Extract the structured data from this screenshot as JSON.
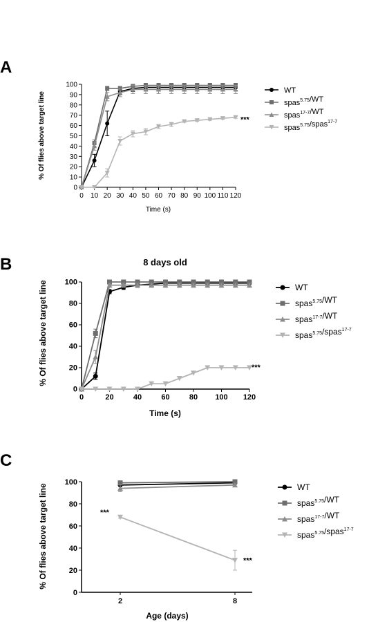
{
  "panels": [
    "A",
    "B",
    "C"
  ],
  "chart_data": [
    {
      "type": "line",
      "panel": "A",
      "title": "",
      "xlabel": "Time (s)",
      "ylabel": "% Of flies above target line",
      "xlim": [
        0,
        120
      ],
      "ylim": [
        0,
        100
      ],
      "xticks": [
        0,
        10,
        20,
        30,
        40,
        50,
        60,
        70,
        80,
        90,
        100,
        110,
        120
      ],
      "yticks": [
        0,
        10,
        20,
        30,
        40,
        50,
        60,
        70,
        80,
        90,
        100
      ],
      "x": [
        0,
        10,
        20,
        30,
        40,
        50,
        60,
        70,
        80,
        90,
        100,
        110,
        120
      ],
      "series": [
        {
          "name": "WT",
          "base": "WT",
          "sup": "",
          "tail": "",
          "marker": "circle",
          "color": "#000000",
          "values": [
            0,
            26,
            62,
            93,
            96,
            97,
            97,
            97,
            97,
            97,
            97,
            97,
            97
          ],
          "errors": [
            0,
            6,
            12,
            3,
            3,
            3,
            3,
            3,
            3,
            3,
            3,
            3,
            3
          ]
        },
        {
          "name": "spas5.75/WT",
          "base": "spas",
          "sup": "5.75",
          "tail": "/WT",
          "marker": "square",
          "color": "#6e6e6e",
          "values": [
            0,
            43,
            96,
            96,
            98,
            99,
            99,
            99,
            99,
            99,
            99,
            99,
            99
          ],
          "errors": [
            0,
            3,
            2,
            2,
            2,
            2,
            2,
            2,
            2,
            2,
            2,
            2,
            2
          ]
        },
        {
          "name": "spas17-7/WT",
          "base": "spas",
          "sup": "17-7",
          "tail": "/WT",
          "marker": "triangle-up",
          "color": "#8c8c8c",
          "values": [
            0,
            40,
            88,
            92,
            95,
            95,
            95,
            95,
            95,
            95,
            95,
            95,
            95
          ],
          "errors": [
            0,
            4,
            4,
            4,
            4,
            4,
            4,
            4,
            4,
            4,
            4,
            4,
            4
          ]
        },
        {
          "name": "spas5.75/spas17-7",
          "base": "spas",
          "sup": "5.75",
          "tail": "/spas",
          "sup2": "17-7",
          "marker": "triangle-down",
          "color": "#b4b4b4",
          "values": [
            0,
            0,
            14,
            45,
            52,
            54,
            59,
            61,
            64,
            65,
            66,
            67,
            68
          ],
          "errors": [
            0,
            0,
            4,
            4,
            3,
            3,
            2,
            2,
            1,
            1,
            1,
            1,
            1
          ]
        }
      ],
      "annotations": [
        {
          "text": "***",
          "at": "end of spas5.75/spas17-7"
        }
      ],
      "legend": "right"
    },
    {
      "type": "line",
      "panel": "B",
      "title": "8 days old",
      "xlabel": "Time (s)",
      "ylabel": "% Of flies above target line",
      "xlim": [
        0,
        120
      ],
      "ylim": [
        0,
        100
      ],
      "xticks": [
        0,
        20,
        40,
        60,
        80,
        100,
        120
      ],
      "yticks": [
        0,
        20,
        40,
        60,
        80,
        100
      ],
      "x": [
        0,
        10,
        20,
        30,
        40,
        50,
        60,
        70,
        80,
        90,
        100,
        110,
        120
      ],
      "series": [
        {
          "name": "WT",
          "base": "WT",
          "sup": "",
          "tail": "",
          "marker": "circle",
          "color": "#000000",
          "values": [
            0,
            12,
            91,
            95,
            97,
            98,
            99,
            99,
            99,
            99,
            99,
            99,
            99
          ],
          "errors": [
            0,
            3,
            2,
            2,
            2,
            2,
            1,
            1,
            1,
            1,
            1,
            1,
            1
          ]
        },
        {
          "name": "spas5.75/WT",
          "base": "spas",
          "sup": "5.75",
          "tail": "/WT",
          "marker": "square",
          "color": "#6e6e6e",
          "values": [
            0,
            52,
            100,
            100,
            100,
            100,
            100,
            100,
            100,
            100,
            100,
            100,
            100
          ],
          "errors": [
            0,
            4,
            0,
            0,
            0,
            0,
            0,
            0,
            0,
            0,
            0,
            0,
            0
          ]
        },
        {
          "name": "spas17-7/WT",
          "base": "spas",
          "sup": "17-7",
          "tail": "/WT",
          "marker": "triangle-up",
          "color": "#8c8c8c",
          "values": [
            0,
            30,
            97,
            97,
            97,
            97,
            97,
            97,
            97,
            97,
            97,
            97,
            97
          ],
          "errors": [
            0,
            6,
            2,
            2,
            2,
            2,
            2,
            2,
            2,
            2,
            2,
            2,
            2
          ]
        },
        {
          "name": "spas5.75/spas17-7",
          "base": "spas",
          "sup": "5.75",
          "tail": "/spas",
          "sup2": "17-7",
          "marker": "triangle-down",
          "color": "#b4b4b4",
          "values": [
            0,
            0,
            0,
            0,
            0,
            5,
            5,
            10,
            15,
            20,
            20,
            20,
            20
          ],
          "errors": [
            0,
            0,
            0,
            0,
            0,
            0,
            0,
            0,
            0,
            0,
            0,
            0,
            0
          ]
        }
      ],
      "annotations": [
        {
          "text": "***",
          "at": "end of spas5.75/spas17-7"
        }
      ],
      "legend": "right"
    },
    {
      "type": "line",
      "panel": "C",
      "title": "",
      "xlabel": "Age (days)",
      "ylabel": "% Of flies above target line",
      "categories": [
        "2",
        "8"
      ],
      "ylim": [
        0,
        100
      ],
      "yticks": [
        0,
        20,
        40,
        60,
        80,
        100
      ],
      "series": [
        {
          "name": "WT",
          "base": "WT",
          "sup": "",
          "tail": "",
          "marker": "circle",
          "color": "#000000",
          "values": [
            97,
            99
          ],
          "errors": [
            1,
            1
          ]
        },
        {
          "name": "spas5.75/WT",
          "base": "spas",
          "sup": "5.75",
          "tail": "/WT",
          "marker": "square",
          "color": "#6e6e6e",
          "values": [
            99,
            100
          ],
          "errors": [
            1,
            0
          ]
        },
        {
          "name": "spas17-7/WT",
          "base": "spas",
          "sup": "17-7",
          "tail": "/WT",
          "marker": "triangle-up",
          "color": "#8c8c8c",
          "values": [
            94,
            97
          ],
          "errors": [
            3,
            1
          ]
        },
        {
          "name": "spas5.75/spas17-7",
          "base": "spas",
          "sup": "5.75",
          "tail": "/spas",
          "sup2": "17-7",
          "marker": "triangle-down",
          "color": "#b4b4b4",
          "values": [
            68,
            29
          ],
          "errors": [
            1,
            9
          ]
        }
      ],
      "annotations": [
        {
          "text": "***",
          "at": "day 2 of spas5.75/spas17-7"
        },
        {
          "text": "***",
          "at": "day 8 of spas5.75/spas17-7"
        }
      ],
      "legend": "right"
    }
  ]
}
